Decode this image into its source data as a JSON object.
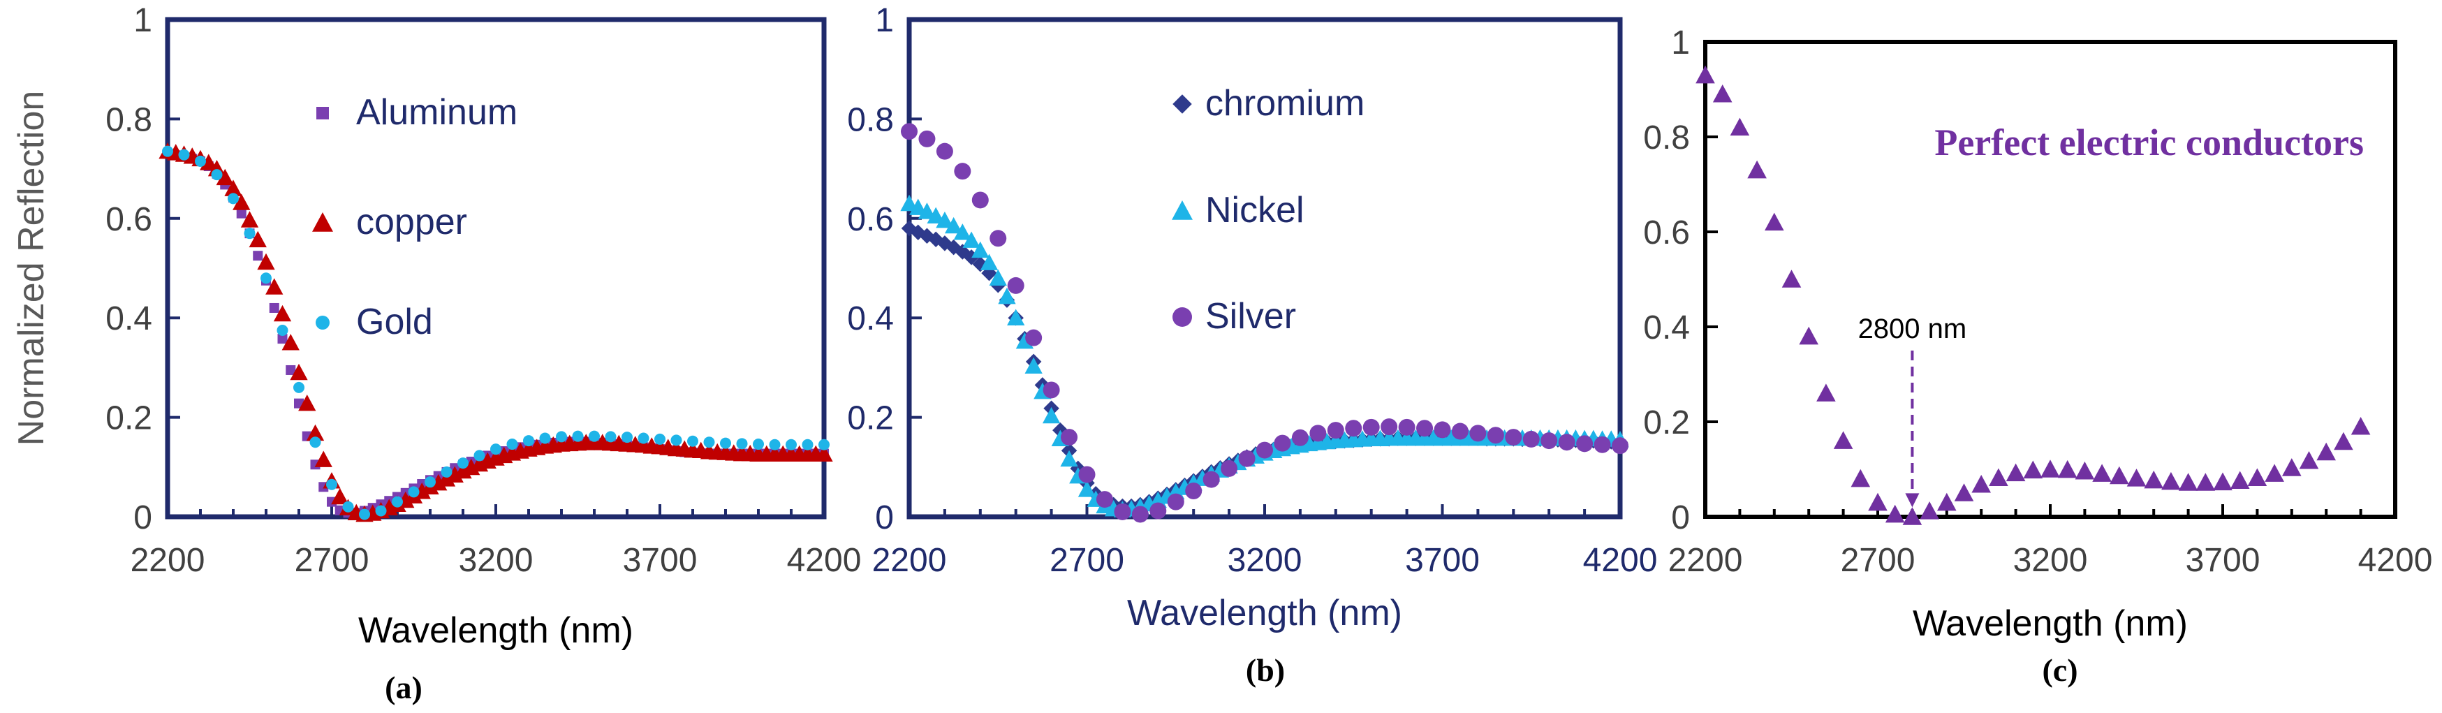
{
  "figure": {
    "panels": [
      {
        "caption": "(a)"
      },
      {
        "caption": "(b)"
      },
      {
        "caption": "(c)"
      }
    ]
  },
  "colors": {
    "aluminum": "#7a3fb0",
    "copper": "#c00000",
    "gold": "#1eb4e8",
    "chromium": "#2e3a8c",
    "nickel": "#1eb4e8",
    "silver": "#7a3fb0",
    "pec": "#7030a0",
    "frame_ab": "#1f2a6b",
    "frame_c": "#000000",
    "text_ab": "#1f2a6b",
    "text_c": "#404040",
    "ylabel_a": "#595959"
  },
  "chart_data": [
    {
      "type": "scatter",
      "panel": "(a)",
      "title": "",
      "xlabel": "Wavelength (nm)",
      "ylabel": "Normalized Reflection",
      "xlim": [
        2200,
        4200
      ],
      "ylim": [
        0,
        1
      ],
      "xticks": [
        "2200",
        "2700",
        "3200",
        "3700",
        "4200"
      ],
      "yticks": [
        "0",
        "0.2",
        "0.4",
        "0.6",
        "0.8",
        "1"
      ],
      "legend": [
        {
          "label": "Aluminum",
          "marker": "square"
        },
        {
          "label": "copper",
          "marker": "triangle"
        },
        {
          "label": "Gold",
          "marker": "circle"
        }
      ],
      "series": [
        {
          "name": "Aluminum",
          "marker": "square",
          "x_start": 2200,
          "x_step": 25,
          "values": [
            0.73,
            0.727,
            0.724,
            0.72,
            0.715,
            0.705,
            0.69,
            0.668,
            0.642,
            0.61,
            0.57,
            0.525,
            0.475,
            0.42,
            0.358,
            0.295,
            0.228,
            0.162,
            0.105,
            0.06,
            0.03,
            0.013,
            0.008,
            0.008,
            0.012,
            0.018,
            0.025,
            0.032,
            0.04,
            0.048,
            0.057,
            0.066,
            0.074,
            0.082,
            0.09,
            0.098,
            0.105,
            0.111,
            0.117,
            0.123,
            0.128,
            0.132,
            0.136,
            0.14,
            0.143,
            0.145,
            0.147,
            0.149,
            0.15,
            0.151,
            0.151,
            0.151,
            0.15,
            0.149,
            0.148,
            0.146,
            0.144,
            0.142,
            0.14,
            0.138,
            0.136,
            0.134,
            0.132,
            0.13,
            0.129,
            0.128,
            0.127,
            0.127,
            0.127,
            0.127,
            0.127,
            0.127,
            0.127,
            0.127,
            0.127,
            0.127,
            0.127,
            0.127,
            0.127,
            0.127,
            0.127
          ]
        },
        {
          "name": "copper",
          "marker": "triangle",
          "x_start": 2200,
          "x_step": 25,
          "values": [
            0.735,
            0.732,
            0.729,
            0.725,
            0.72,
            0.712,
            0.7,
            0.682,
            0.66,
            0.632,
            0.597,
            0.557,
            0.512,
            0.462,
            0.408,
            0.35,
            0.29,
            0.228,
            0.168,
            0.115,
            0.072,
            0.04,
            0.018,
            0.008,
            0.005,
            0.007,
            0.012,
            0.018,
            0.025,
            0.033,
            0.042,
            0.051,
            0.06,
            0.068,
            0.076,
            0.084,
            0.092,
            0.099,
            0.106,
            0.112,
            0.118,
            0.123,
            0.128,
            0.132,
            0.136,
            0.139,
            0.142,
            0.144,
            0.146,
            0.147,
            0.148,
            0.149,
            0.149,
            0.149,
            0.148,
            0.147,
            0.146,
            0.145,
            0.144,
            0.142,
            0.141,
            0.139,
            0.137,
            0.136,
            0.134,
            0.133,
            0.131,
            0.13,
            0.129,
            0.128,
            0.127,
            0.127,
            0.126,
            0.126,
            0.126,
            0.126,
            0.126,
            0.126,
            0.126,
            0.126,
            0.126
          ]
        },
        {
          "name": "Gold",
          "marker": "circle",
          "x_start": 2200,
          "x_step": 50,
          "values": [
            0.735,
            0.728,
            0.715,
            0.688,
            0.64,
            0.57,
            0.48,
            0.375,
            0.26,
            0.15,
            0.065,
            0.02,
            0.005,
            0.012,
            0.03,
            0.05,
            0.07,
            0.09,
            0.108,
            0.123,
            0.136,
            0.146,
            0.153,
            0.158,
            0.161,
            0.162,
            0.162,
            0.161,
            0.16,
            0.158,
            0.156,
            0.154,
            0.152,
            0.15,
            0.148,
            0.147,
            0.146,
            0.145,
            0.145,
            0.145,
            0.145
          ]
        }
      ]
    },
    {
      "type": "scatter",
      "panel": "(b)",
      "title": "",
      "xlabel": "Wavelength (nm)",
      "ylabel": "",
      "xlim": [
        2200,
        4200
      ],
      "ylim": [
        0,
        1
      ],
      "xticks": [
        "2200",
        "2700",
        "3200",
        "3700",
        "4200"
      ],
      "yticks": [
        "0",
        "0.2",
        "0.4",
        "0.6",
        "0.8",
        "1"
      ],
      "legend": [
        {
          "label": "chromium",
          "marker": "diamond"
        },
        {
          "label": "Nickel",
          "marker": "triangle"
        },
        {
          "label": "Silver",
          "marker": "circle"
        }
      ],
      "series": [
        {
          "name": "chromium",
          "marker": "diamond",
          "x_start": 2200,
          "x_step": 25,
          "values": [
            0.58,
            0.572,
            0.565,
            0.558,
            0.55,
            0.542,
            0.533,
            0.522,
            0.508,
            0.49,
            0.466,
            0.436,
            0.4,
            0.358,
            0.312,
            0.265,
            0.218,
            0.174,
            0.133,
            0.097,
            0.068,
            0.046,
            0.032,
            0.024,
            0.021,
            0.021,
            0.024,
            0.03,
            0.037,
            0.045,
            0.054,
            0.063,
            0.072,
            0.081,
            0.09,
            0.098,
            0.106,
            0.113,
            0.12,
            0.126,
            0.131,
            0.135,
            0.139,
            0.142,
            0.145,
            0.147,
            0.149,
            0.151,
            0.152,
            0.153,
            0.154,
            0.155,
            0.156,
            0.157,
            0.157,
            0.158,
            0.158,
            0.158,
            0.158,
            0.158,
            0.158,
            0.158,
            0.158,
            0.158,
            0.158,
            0.157,
            0.157,
            0.157,
            0.157,
            0.156,
            0.156,
            0.156,
            0.155,
            0.155,
            0.155,
            0.154,
            0.154,
            0.153,
            0.152,
            0.151,
            0.15
          ]
        },
        {
          "name": "Nickel",
          "marker": "triangle",
          "x_start": 2200,
          "x_step": 25,
          "values": [
            0.63,
            0.622,
            0.614,
            0.605,
            0.596,
            0.585,
            0.572,
            0.556,
            0.536,
            0.511,
            0.48,
            0.443,
            0.4,
            0.353,
            0.303,
            0.252,
            0.203,
            0.157,
            0.116,
            0.082,
            0.055,
            0.035,
            0.022,
            0.016,
            0.014,
            0.016,
            0.02,
            0.026,
            0.033,
            0.041,
            0.05,
            0.059,
            0.068,
            0.077,
            0.086,
            0.094,
            0.102,
            0.109,
            0.116,
            0.122,
            0.128,
            0.133,
            0.137,
            0.141,
            0.144,
            0.147,
            0.149,
            0.151,
            0.153,
            0.154,
            0.155,
            0.156,
            0.157,
            0.157,
            0.158,
            0.158,
            0.158,
            0.158,
            0.158,
            0.158,
            0.158,
            0.158,
            0.158,
            0.158,
            0.158,
            0.158,
            0.158,
            0.158,
            0.158,
            0.158,
            0.158,
            0.158,
            0.158,
            0.158,
            0.158,
            0.158,
            0.157,
            0.157,
            0.156,
            0.156,
            0.155
          ]
        },
        {
          "name": "Silver",
          "marker": "circle",
          "x_start": 2200,
          "x_step": 50,
          "values": [
            0.775,
            0.76,
            0.735,
            0.695,
            0.637,
            0.56,
            0.465,
            0.36,
            0.255,
            0.16,
            0.085,
            0.035,
            0.01,
            0.005,
            0.012,
            0.03,
            0.052,
            0.075,
            0.097,
            0.117,
            0.134,
            0.148,
            0.159,
            0.168,
            0.174,
            0.178,
            0.18,
            0.181,
            0.18,
            0.178,
            0.175,
            0.172,
            0.168,
            0.164,
            0.16,
            0.156,
            0.153,
            0.15,
            0.147,
            0.145,
            0.143
          ]
        }
      ]
    },
    {
      "type": "scatter",
      "panel": "(c)",
      "title": "",
      "xlabel": "Wavelength (nm)",
      "ylabel": "",
      "xlim": [
        2200,
        4200
      ],
      "ylim": [
        0,
        1
      ],
      "xticks": [
        "2200",
        "2700",
        "3200",
        "3700",
        "4200"
      ],
      "yticks": [
        "0",
        "0.2",
        "0.4",
        "0.6",
        "0.8",
        "1"
      ],
      "annotations": [
        {
          "text": "Perfect electric conductors",
          "type": "label"
        },
        {
          "text": "2800 nm",
          "type": "arrow",
          "x": 2800,
          "y_from": 0.35,
          "y_to": 0.02
        }
      ],
      "series": [
        {
          "name": "Perfect electric conductors",
          "marker": "triangle",
          "x_start": 2200,
          "x_step": 50,
          "values": [
            0.93,
            0.89,
            0.82,
            0.73,
            0.62,
            0.5,
            0.38,
            0.26,
            0.16,
            0.08,
            0.03,
            0.005,
            0.0,
            0.012,
            0.03,
            0.05,
            0.068,
            0.082,
            0.092,
            0.098,
            0.1,
            0.099,
            0.096,
            0.091,
            0.086,
            0.081,
            0.077,
            0.074,
            0.072,
            0.072,
            0.073,
            0.076,
            0.082,
            0.091,
            0.103,
            0.118,
            0.136,
            0.158,
            0.19
          ]
        }
      ]
    }
  ]
}
